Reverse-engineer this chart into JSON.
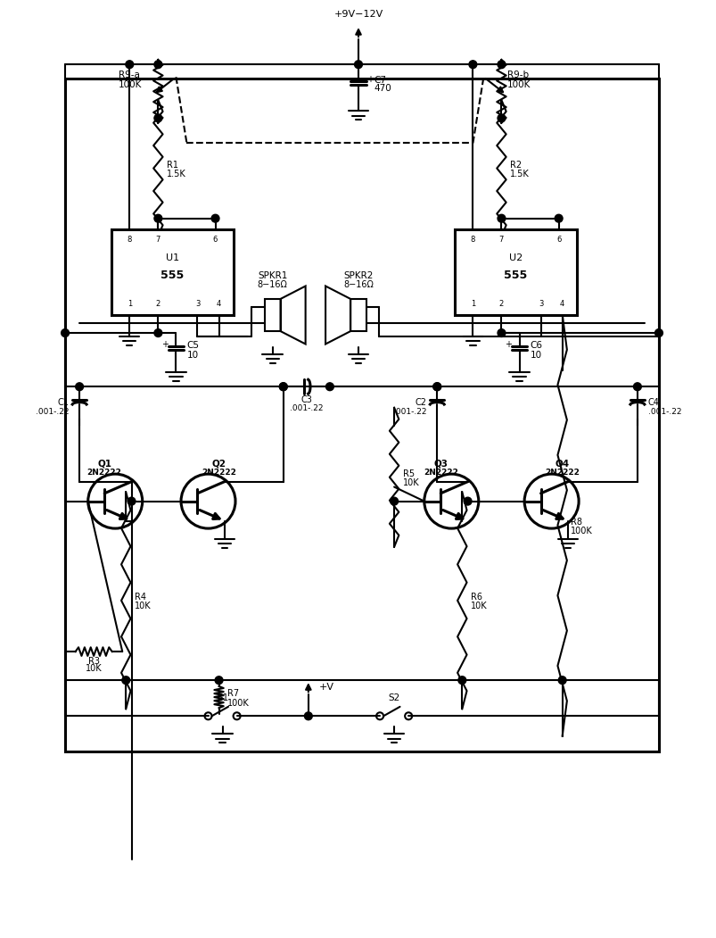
{
  "bg": "#ffffff",
  "lc": "#000000",
  "lw": 1.5,
  "lw2": 2.2,
  "figw": 8.04,
  "figh": 10.51,
  "xlim": [
    0,
    100
  ],
  "ylim": [
    0,
    131
  ]
}
